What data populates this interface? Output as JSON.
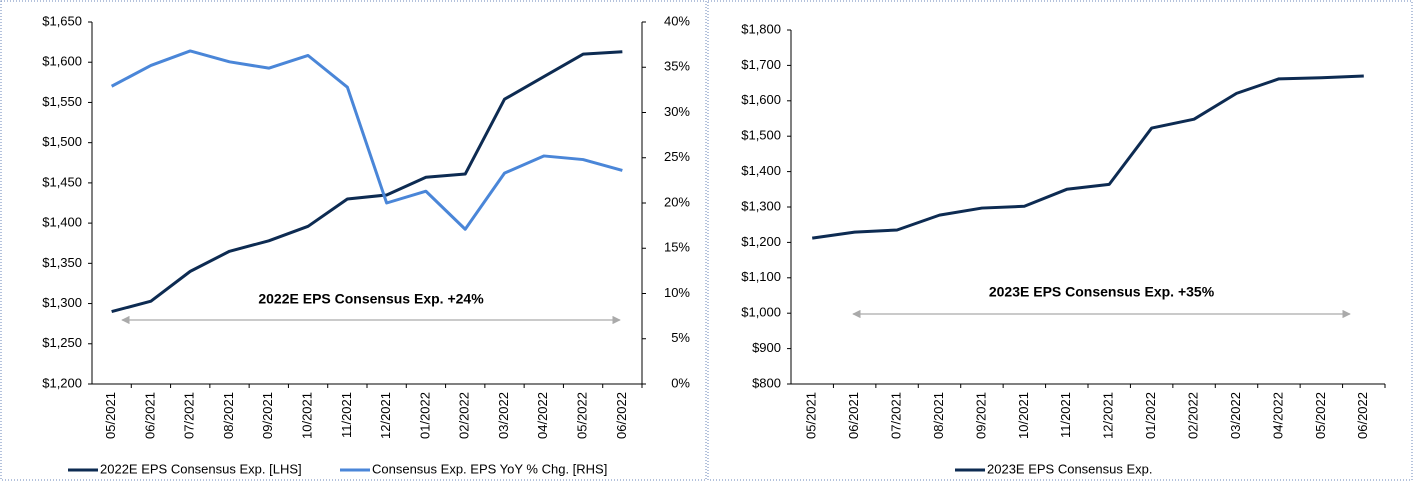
{
  "chart_data": [
    {
      "type": "line",
      "annotation": "2022E EPS Consensus Exp. +24%",
      "categories": [
        "05/2021",
        "06/2021",
        "07/2021",
        "08/2021",
        "09/2021",
        "10/2021",
        "11/2021",
        "12/2021",
        "01/2022",
        "02/2022",
        "03/2022",
        "04/2022",
        "05/2022",
        "06/2022"
      ],
      "series": [
        {
          "name": "2022E EPS Consensus Exp. [LHS]",
          "color": "#0d2b52",
          "values": [
            1290,
            1303,
            1340,
            1365,
            1378,
            1396,
            1430,
            1435,
            1457,
            1461,
            1554,
            1582,
            1610,
            1613
          ]
        },
        {
          "name": "Consensus Exp. EPS YoY % Chg. [RHS]",
          "color": "#4a86d8",
          "axis": "y2",
          "values": [
            32.9,
            35.2,
            36.8,
            35.6,
            34.9,
            36.3,
            32.8,
            20.0,
            21.3,
            17.1,
            23.3,
            25.2,
            24.8,
            23.6
          ]
        }
      ],
      "ylim": [
        1200,
        1650
      ],
      "yticks": [
        {
          "value": 1200,
          "label": "$1,200"
        },
        {
          "value": 1250,
          "label": "$1,250"
        },
        {
          "value": 1300,
          "label": "$1,300"
        },
        {
          "value": 1350,
          "label": "$1,350"
        },
        {
          "value": 1400,
          "label": "$1,400"
        },
        {
          "value": 1450,
          "label": "$1,450"
        },
        {
          "value": 1500,
          "label": "$1,500"
        },
        {
          "value": 1550,
          "label": "$1,550"
        },
        {
          "value": 1600,
          "label": "$1,600"
        },
        {
          "value": 1650,
          "label": "$1,650"
        }
      ],
      "y2lim": [
        0,
        40
      ],
      "y2ticks": [
        {
          "value": 0,
          "label": "0%"
        },
        {
          "value": 5,
          "label": "5%"
        },
        {
          "value": 10,
          "label": "10%"
        },
        {
          "value": 15,
          "label": "15%"
        },
        {
          "value": 20,
          "label": "20%"
        },
        {
          "value": 25,
          "label": "25%"
        },
        {
          "value": 30,
          "label": "30%"
        },
        {
          "value": 35,
          "label": "35%"
        },
        {
          "value": 40,
          "label": "40%"
        }
      ]
    },
    {
      "type": "line",
      "annotation": "2023E EPS Consensus Exp. +35%",
      "categories": [
        "05/2021",
        "06/2021",
        "07/2021",
        "08/2021",
        "09/2021",
        "10/2021",
        "11/2021",
        "12/2021",
        "01/2022",
        "02/2022",
        "03/2022",
        "04/2022",
        "05/2022",
        "06/2022"
      ],
      "series": [
        {
          "name": "2023E EPS Consensus Exp.",
          "color": "#0d2b52",
          "values": [
            1212,
            1229,
            1235,
            1277,
            1297,
            1302,
            1350,
            1364,
            1523,
            1548,
            1621,
            1662,
            1665,
            1670
          ]
        }
      ],
      "ylim": [
        800,
        1800
      ],
      "yticks": [
        {
          "value": 800,
          "label": "$800"
        },
        {
          "value": 900,
          "label": "$900"
        },
        {
          "value": 1000,
          "label": "$1,000"
        },
        {
          "value": 1100,
          "label": "$1,100"
        },
        {
          "value": 1200,
          "label": "$1,200"
        },
        {
          "value": 1300,
          "label": "$1,300"
        },
        {
          "value": 1400,
          "label": "$1,400"
        },
        {
          "value": 1500,
          "label": "$1,500"
        },
        {
          "value": 1600,
          "label": "$1,600"
        },
        {
          "value": 1700,
          "label": "$1,700"
        },
        {
          "value": 1800,
          "label": "$1,800"
        }
      ]
    }
  ]
}
